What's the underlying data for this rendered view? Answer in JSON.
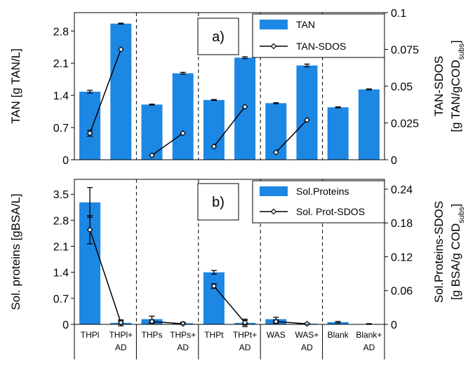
{
  "chart_data": [
    {
      "type": "bar",
      "panel_label": "a)",
      "categories": [
        "THPl",
        "THPl+AD",
        "THPs",
        "THPs+AD",
        "THPt",
        "THPt+AD",
        "WAS",
        "WAS+AD",
        "Blank",
        "Blank+AD"
      ],
      "ylabel": "TAN [g TAN/L]",
      "ylabel_right_line1": "TAN-SDOS",
      "ylabel_right_line2_pre": "[g TAN/gCOD",
      "ylabel_right_line2_sub": "subs",
      "ylabel_right_line2_post": "]",
      "ylim": [
        0,
        3.2
      ],
      "yticks": [
        "0",
        "0.7",
        "1.4",
        "2.1",
        "2.8"
      ],
      "yticks_vals": [
        0,
        0.7,
        1.4,
        2.1,
        2.8
      ],
      "y2lim": [
        0,
        0.1
      ],
      "y2ticks": [
        "0",
        "0.025",
        "0.05",
        "0.075",
        "0.1"
      ],
      "y2ticks_vals": [
        0,
        0.025,
        0.05,
        0.075,
        0.1
      ],
      "bar_series": {
        "name": "TAN",
        "values": [
          1.48,
          2.96,
          1.2,
          1.88,
          1.3,
          2.22,
          1.23,
          2.05,
          1.14,
          1.53
        ],
        "errors": [
          0.03,
          0.01,
          0.01,
          0.02,
          0.01,
          0.02,
          0.01,
          0.03,
          0.01,
          0.01
        ]
      },
      "line_series": {
        "name": "TAN-SDOS",
        "pairs": [
          {
            "x": [
              0,
              1
            ],
            "values": [
              0.018,
              0.075
            ],
            "errors": [
              0.002,
              0.0
            ]
          },
          {
            "x": [
              2,
              3
            ],
            "values": [
              0.003,
              0.018
            ],
            "errors": [
              0.0,
              0.0
            ]
          },
          {
            "x": [
              4,
              5
            ],
            "values": [
              0.009,
              0.036
            ],
            "errors": [
              0.0,
              0.0
            ]
          },
          {
            "x": [
              6,
              7
            ],
            "values": [
              0.005,
              0.027
            ],
            "errors": [
              0.0,
              0.0
            ]
          }
        ]
      },
      "legend_placement": "top-right"
    },
    {
      "type": "bar",
      "panel_label": "b)",
      "categories": [
        "THPl",
        "THPl+AD",
        "THPs",
        "THPs+AD",
        "THPt",
        "THPt+AD",
        "WAS",
        "WAS+AD",
        "Blank",
        "Blank+AD"
      ],
      "ylabel": "Sol. proteins [gBSA/L]",
      "ylabel_right_line1": "Sol.Proteins-SDOS",
      "ylabel_right_line2_pre": "[g BSA/g COD",
      "ylabel_right_line2_sub": "subs",
      "ylabel_right_line2_post": "]",
      "ylim": [
        0,
        3.9
      ],
      "yticks": [
        "0",
        "0.7",
        "1.4",
        "2.1",
        "2.8",
        "3.5"
      ],
      "yticks_vals": [
        0,
        0.7,
        1.4,
        2.1,
        2.8,
        3.5
      ],
      "y2lim": [
        0,
        0.2574
      ],
      "y2ticks": [
        "0",
        "0.06",
        "0.12",
        "0.18",
        "0.24"
      ],
      "y2ticks_vals": [
        0,
        0.06,
        0.12,
        0.18,
        0.24
      ],
      "bar_series": {
        "name": "Sol.Proteins",
        "values": [
          3.28,
          0.04,
          0.14,
          0.03,
          1.4,
          0.04,
          0.14,
          0.02,
          0.06,
          0.01
        ],
        "errors": [
          0.4,
          0.08,
          0.08,
          0.03,
          0.05,
          0.1,
          0.05,
          0.01,
          0.02,
          0.01
        ]
      },
      "line_series": {
        "name": "Sol. Prot-SDOS",
        "pairs": [
          {
            "x": [
              0,
              1
            ],
            "values": [
              0.168,
              0.003
            ],
            "errors": [
              0.025,
              0.003
            ]
          },
          {
            "x": [
              2,
              3
            ],
            "values": [
              0.005,
              0.001
            ],
            "errors": [
              0.003,
              0.001
            ]
          },
          {
            "x": [
              4,
              5
            ],
            "values": [
              0.068,
              0.003
            ],
            "errors": [
              0.004,
              0.004
            ]
          },
          {
            "x": [
              6,
              7
            ],
            "values": [
              0.005,
              0.001
            ],
            "errors": [
              0.003,
              0.001
            ]
          }
        ]
      },
      "legend_placement": "top-right"
    }
  ],
  "x_labels": [
    {
      "line1": "THPl",
      "line2": ""
    },
    {
      "line1": "THPl+",
      "line2": "AD"
    },
    {
      "line1": "THPs",
      "line2": ""
    },
    {
      "line1": "THPs+",
      "line2": "AD"
    },
    {
      "line1": "THPt",
      "line2": ""
    },
    {
      "line1": "THPt+",
      "line2": "AD"
    },
    {
      "line1": "WAS",
      "line2": ""
    },
    {
      "line1": "WAS+",
      "line2": "AD"
    },
    {
      "line1": "Blank",
      "line2": ""
    },
    {
      "line1": "Blank+",
      "line2": "AD"
    }
  ],
  "colors": {
    "bar": "#1d87e4",
    "line": "#000000",
    "axis": "#000000"
  }
}
